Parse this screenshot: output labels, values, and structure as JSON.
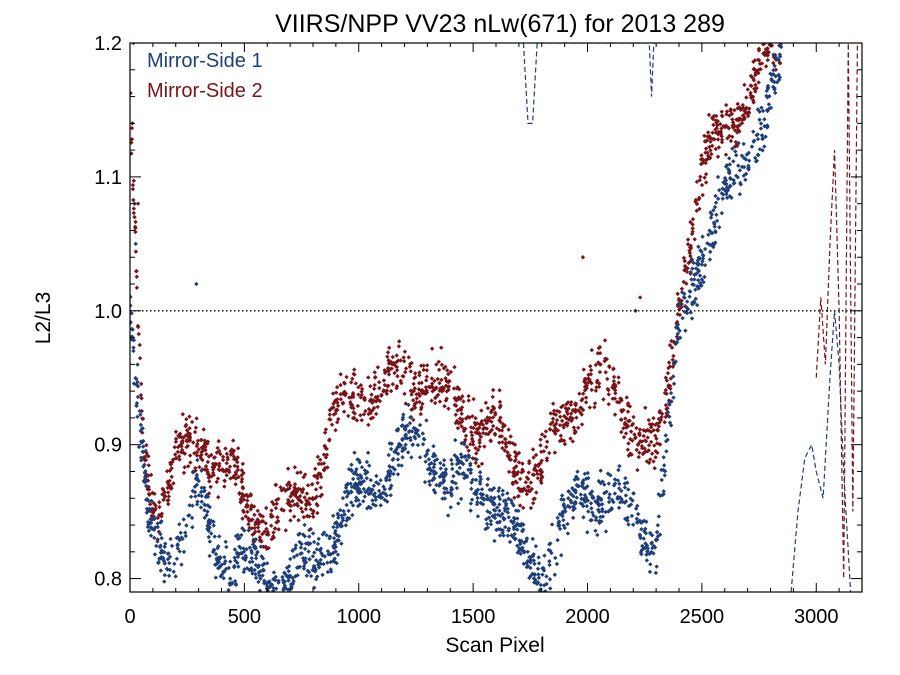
{
  "chart_data": {
    "type": "scatter",
    "title": "VIIRS/NPP VV23 nLw(671) for 2013 289",
    "xlabel": "Scan Pixel",
    "ylabel": "L2/L3",
    "xlim": [
      0,
      3200
    ],
    "ylim": [
      0.79,
      1.2
    ],
    "xticks": [
      0,
      500,
      1000,
      1500,
      2000,
      2500,
      3000
    ],
    "yticks": [
      0.8,
      0.9,
      1.0,
      1.1,
      1.2
    ],
    "xtick_labels": [
      "0",
      "500",
      "1000",
      "1500",
      "2000",
      "2500",
      "3000"
    ],
    "ytick_labels": [
      "0.8",
      "0.9",
      "1.0",
      "1.1",
      "1.2"
    ],
    "reference_line": {
      "y": 1.0,
      "style": "dotted",
      "color": "#000000"
    },
    "legend_position": "top-left",
    "series": [
      {
        "name": "Mirror-Side 1",
        "color": "#1f3f7a",
        "trend": [
          [
            0,
            1.0
          ],
          [
            30,
            0.93
          ],
          [
            80,
            0.84
          ],
          [
            150,
            0.82
          ],
          [
            250,
            0.83
          ],
          [
            300,
            0.86
          ],
          [
            400,
            0.82
          ],
          [
            500,
            0.81
          ],
          [
            600,
            0.8
          ],
          [
            700,
            0.8
          ],
          [
            800,
            0.81
          ],
          [
            900,
            0.84
          ],
          [
            1000,
            0.86
          ],
          [
            1100,
            0.88
          ],
          [
            1200,
            0.9
          ],
          [
            1300,
            0.9
          ],
          [
            1400,
            0.87
          ],
          [
            1500,
            0.87
          ],
          [
            1600,
            0.86
          ],
          [
            1700,
            0.82
          ],
          [
            1800,
            0.81
          ],
          [
            1900,
            0.84
          ],
          [
            2000,
            0.87
          ],
          [
            2100,
            0.86
          ],
          [
            2200,
            0.85
          ],
          [
            2300,
            0.83
          ],
          [
            2350,
            0.9
          ],
          [
            2400,
            0.98
          ],
          [
            2500,
            1.05
          ],
          [
            2600,
            1.08
          ],
          [
            2700,
            1.12
          ],
          [
            2800,
            1.16
          ],
          [
            2850,
            1.18
          ]
        ],
        "spread": 0.03,
        "dashed": [
          [
            2890,
            0.79
          ],
          [
            2920,
            0.85
          ],
          [
            2950,
            0.89
          ],
          [
            2980,
            0.9
          ],
          [
            3000,
            0.88
          ],
          [
            3030,
            0.86
          ],
          [
            3060,
            0.95
          ],
          [
            3080,
            1.0
          ],
          [
            3100,
            0.96
          ],
          [
            3120,
            0.88
          ],
          [
            3150,
            0.79
          ]
        ],
        "top_dips": [
          [
            1720,
            1.2
          ],
          [
            1740,
            1.14
          ],
          [
            1760,
            1.14
          ],
          [
            1780,
            1.2
          ],
          [
            2270,
            1.2
          ],
          [
            2280,
            1.16
          ],
          [
            2290,
            1.2
          ]
        ],
        "outliers": [
          [
            290,
            1.02
          ],
          [
            20,
            1.08
          ],
          [
            25,
            1.05
          ],
          [
            15,
            0.97
          ]
        ]
      },
      {
        "name": "Mirror-Side 2",
        "color": "#7a1418",
        "trend": [
          [
            0,
            1.15
          ],
          [
            30,
            1.02
          ],
          [
            60,
            0.9
          ],
          [
            120,
            0.85
          ],
          [
            200,
            0.88
          ],
          [
            300,
            0.91
          ],
          [
            400,
            0.88
          ],
          [
            500,
            0.86
          ],
          [
            600,
            0.84
          ],
          [
            700,
            0.85
          ],
          [
            800,
            0.87
          ],
          [
            900,
            0.92
          ],
          [
            1000,
            0.94
          ],
          [
            1100,
            0.94
          ],
          [
            1200,
            0.95
          ],
          [
            1300,
            0.95
          ],
          [
            1400,
            0.93
          ],
          [
            1500,
            0.92
          ],
          [
            1600,
            0.91
          ],
          [
            1700,
            0.88
          ],
          [
            1800,
            0.88
          ],
          [
            1900,
            0.92
          ],
          [
            2000,
            0.95
          ],
          [
            2100,
            0.94
          ],
          [
            2200,
            0.92
          ],
          [
            2300,
            0.89
          ],
          [
            2350,
            0.93
          ],
          [
            2400,
            1.02
          ],
          [
            2500,
            1.1
          ],
          [
            2600,
            1.14
          ],
          [
            2700,
            1.16
          ],
          [
            2800,
            1.19
          ],
          [
            2850,
            1.2
          ]
        ],
        "spread": 0.03,
        "dashed": [
          [
            3000,
            0.95
          ],
          [
            3020,
            1.01
          ],
          [
            3040,
            0.96
          ],
          [
            3060,
            1.05
          ],
          [
            3080,
            1.12
          ],
          [
            3100,
            1.0
          ],
          [
            3120,
            0.8
          ],
          [
            3140,
            1.2
          ],
          [
            3160,
            0.85
          ],
          [
            3180,
            1.2
          ]
        ],
        "outliers": [
          [
            10,
            1.14
          ],
          [
            15,
            1.2
          ],
          [
            20,
            1.08
          ],
          [
            35,
            1.08
          ],
          [
            1980,
            1.04
          ],
          [
            2210,
            1.0
          ],
          [
            2230,
            1.01
          ]
        ]
      }
    ]
  }
}
